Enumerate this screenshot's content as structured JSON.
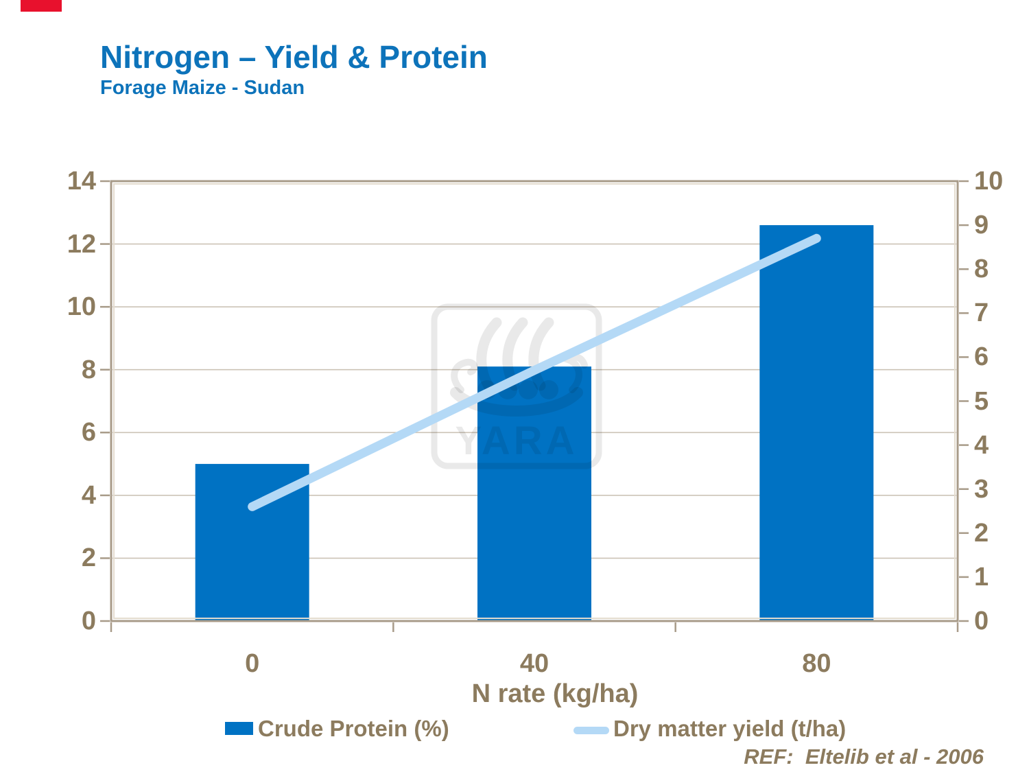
{
  "header": {
    "title": "Nitrogen – Yield & Protein",
    "subtitle": "Forage Maize - Sudan"
  },
  "footer": {
    "ref": "REF:  Eltelib et al - 2006"
  },
  "watermark": {
    "text": "YARA",
    "icon": "viking-ship-icon"
  },
  "colors": {
    "bar": "#0072C3",
    "line": "#B4D9F6",
    "title_blue": "#0D73BA",
    "axis_text_brown": "#8C7B5E",
    "gridline": "#CCC3B6",
    "plot_border": "#A89B89",
    "plot_border_highlight": "#E4DCCF",
    "corner_mark_red": "#E8112D"
  },
  "chart_data": {
    "type": "combo (bar + line)",
    "categories": [
      "0",
      "40",
      "80"
    ],
    "series": [
      {
        "name": "Crude Protein (%)",
        "type": "bar",
        "axis": "left",
        "values": [
          5.0,
          8.1,
          12.6
        ]
      },
      {
        "name": "Dry matter yield (t/ha)",
        "type": "line",
        "axis": "right",
        "values": [
          2.6,
          5.7,
          8.7
        ]
      }
    ],
    "xlabel": "N rate (kg/ha)",
    "left_axis": {
      "min": 0,
      "max": 14,
      "step": 2,
      "ticks": [
        0,
        2,
        4,
        6,
        8,
        10,
        12,
        14
      ]
    },
    "right_axis": {
      "min": 0,
      "max": 10,
      "step": 1,
      "ticks": [
        0,
        1,
        2,
        3,
        4,
        5,
        6,
        7,
        8,
        9,
        10
      ]
    },
    "grid": "horizontal gridlines at left-axis steps",
    "legend_position": "bottom"
  },
  "legend": {
    "items": [
      {
        "label": "Crude Protein (%)",
        "swatch": "bar"
      },
      {
        "label": "Dry matter yield (t/ha)",
        "swatch": "line"
      }
    ]
  }
}
